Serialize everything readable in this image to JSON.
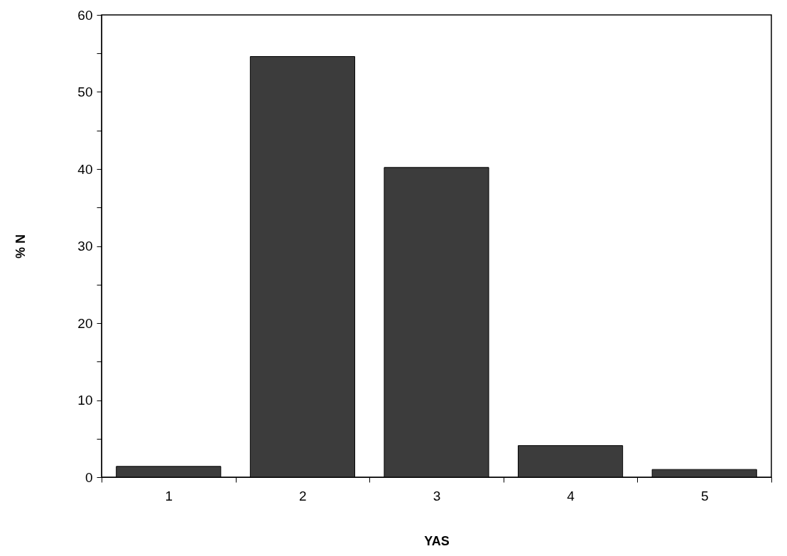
{
  "chart_data": {
    "type": "bar",
    "xlabel": "YAS",
    "ylabel": "% N",
    "categories": [
      "1",
      "2",
      "3",
      "4",
      "5"
    ],
    "values": [
      1.4,
      54.6,
      40.2,
      4.1,
      1.0
    ],
    "color": "#3c3c3c",
    "ylim": [
      0,
      60
    ],
    "yticks": [
      0,
      {
        "value": 5,
        "label": null
      },
      10,
      {
        "value": 15,
        "label": null
      },
      20,
      {
        "value": 25,
        "label": null
      },
      30,
      {
        "value": 35,
        "label": null
      },
      40,
      {
        "value": 45,
        "label": null
      },
      50,
      {
        "value": 55,
        "label": null
      },
      60
    ],
    "grid": false
  }
}
